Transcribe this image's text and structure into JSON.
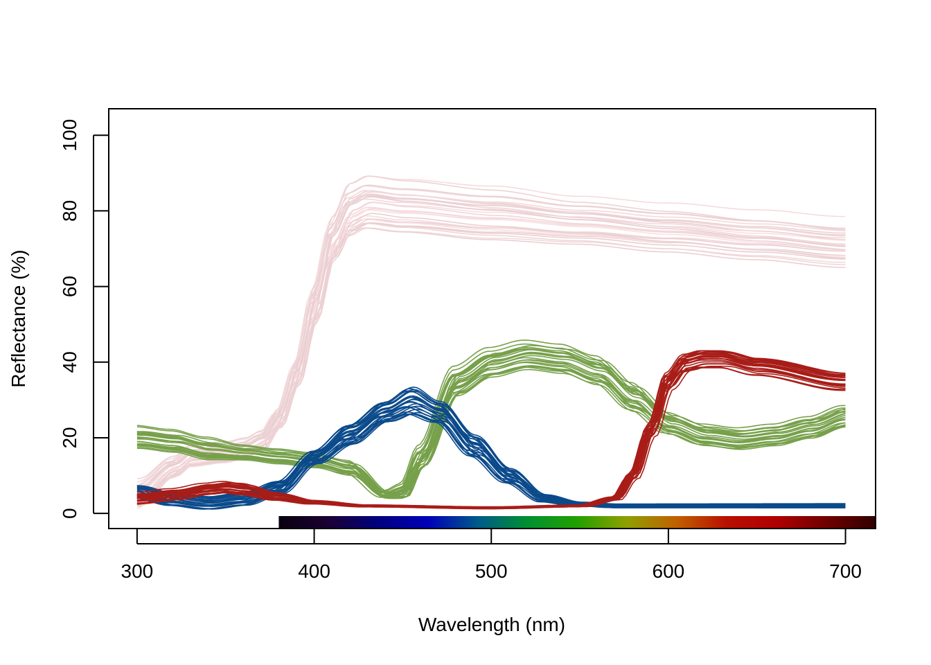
{
  "chart_data": {
    "type": "line",
    "title": "",
    "xlabel": "Wavelength (nm)",
    "ylabel": "Reflectance (%)",
    "xlim": [
      284,
      717
    ],
    "ylim": [
      -4,
      107
    ],
    "x_ticks": [
      300,
      400,
      500,
      600,
      700
    ],
    "y_ticks": [
      0,
      20,
      40,
      60,
      80,
      100
    ],
    "x_tick_labels": [
      "300",
      "400",
      "500",
      "600",
      "700"
    ],
    "y_tick_labels": [
      "0",
      "20",
      "40",
      "60",
      "80",
      "100"
    ],
    "grid": false,
    "legend": "none",
    "spectrum_bar": {
      "x_range": [
        380,
        717
      ],
      "colors": [
        "#0a0010",
        "#1a0033",
        "#000080",
        "#0000b8",
        "#005a8a",
        "#009030",
        "#22a000",
        "#8fa000",
        "#c06000",
        "#b81000",
        "#b00000",
        "#700000",
        "#300000"
      ]
    },
    "series": [
      {
        "color": "#f0dcdc",
        "count": 28,
        "x": [
          300,
          320,
          330,
          350,
          360,
          370,
          380,
          390,
          400,
          410,
          420,
          430,
          450,
          500,
          550,
          600,
          650,
          700
        ],
        "values": [
          5,
          12,
          15,
          16,
          17,
          19,
          25,
          37,
          55,
          72,
          80,
          82,
          81,
          79,
          77,
          75,
          73,
          71
        ],
        "spread_y": [
          4,
          3,
          3,
          3,
          3,
          3,
          3,
          4,
          6,
          7,
          8,
          8,
          8,
          8,
          7,
          7,
          7,
          7
        ]
      },
      {
        "color": "#76a04a",
        "count": 24,
        "x": [
          300,
          320,
          340,
          360,
          380,
          400,
          420,
          440,
          450,
          460,
          480,
          500,
          520,
          540,
          560,
          580,
          600,
          620,
          640,
          660,
          680,
          700
        ],
        "values": [
          20,
          19,
          17,
          16,
          15,
          14,
          12,
          5,
          6,
          15,
          35,
          40,
          42,
          41,
          38,
          31,
          24,
          21,
          20,
          21,
          23,
          26
        ],
        "spread_y": [
          3,
          3,
          3,
          2,
          2,
          2,
          2,
          1,
          2,
          3,
          4,
          4,
          4,
          4,
          4,
          4,
          3,
          3,
          3,
          3,
          3,
          3
        ]
      },
      {
        "color": "#0b4a8b",
        "count": 24,
        "x": [
          300,
          320,
          340,
          360,
          380,
          400,
          420,
          440,
          455,
          470,
          490,
          510,
          530,
          550,
          570,
          600,
          650,
          700
        ],
        "values": [
          6,
          4,
          3,
          4,
          7,
          15,
          21,
          27,
          30,
          27,
          18,
          10,
          4,
          2.5,
          2,
          2,
          2,
          2
        ],
        "spread_y": [
          2,
          2,
          2,
          2,
          2,
          2,
          3,
          3,
          4,
          3,
          3,
          2,
          1,
          0.5,
          0.5,
          0.5,
          0.5,
          0.5
        ]
      },
      {
        "color": "#a81d18",
        "count": 24,
        "x": [
          300,
          320,
          340,
          350,
          360,
          380,
          400,
          430,
          500,
          550,
          570,
          580,
          590,
          600,
          610,
          620,
          630,
          650,
          700
        ],
        "values": [
          4,
          5,
          6.5,
          7,
          6.5,
          4.5,
          3,
          2,
          1.5,
          2,
          4,
          10,
          22,
          35,
          40,
          41,
          41,
          39,
          35
        ],
        "spread_y": [
          1.5,
          1.5,
          1.5,
          1.5,
          1.5,
          1,
          0.5,
          0.3,
          0.3,
          0.3,
          0.5,
          1,
          2,
          3,
          3,
          3,
          3,
          3,
          3
        ]
      }
    ]
  }
}
